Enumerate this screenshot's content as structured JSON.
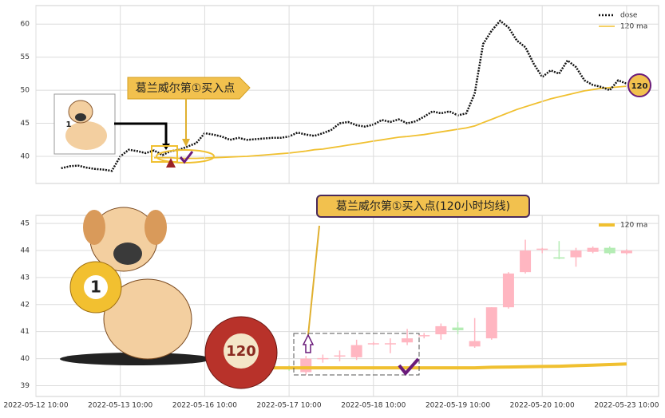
{
  "chart_data": [
    {
      "type": "line",
      "series": [
        {
          "name": "dose",
          "color": "#111111",
          "style": "dotted",
          "values": [
            null,
            null,
            null,
            38.2,
            38.5,
            38.6,
            38.3,
            38.1,
            38.0,
            37.8,
            40.0,
            41.0,
            40.8,
            40.5,
            40.9,
            40.2,
            40.8,
            41.0,
            41.5,
            42.0,
            43.5,
            43.3,
            43.0,
            42.5,
            42.8,
            42.5,
            42.6,
            42.7,
            42.8,
            42.8,
            43.0,
            43.6,
            43.3,
            43.1,
            43.5,
            44.0,
            45.0,
            45.2,
            44.7,
            44.5,
            44.8,
            45.5,
            45.2,
            45.6,
            45.0,
            45.3,
            46.0,
            46.8,
            46.5,
            46.8,
            46.2,
            46.5,
            49.5,
            57.0,
            59.0,
            60.5,
            59.5,
            57.5,
            56.5,
            54.0,
            52.0,
            53.0,
            52.5,
            54.5,
            53.5,
            51.5,
            50.8,
            50.5,
            50.0,
            51.5,
            51.0
          ]
        },
        {
          "name": "120 ma",
          "color": "#f0c030",
          "values": [
            null,
            null,
            null,
            null,
            null,
            null,
            null,
            null,
            null,
            null,
            null,
            null,
            null,
            null,
            39.8,
            39.8,
            39.8,
            39.7,
            39.7,
            39.7,
            39.75,
            39.8,
            39.85,
            39.9,
            39.95,
            40.0,
            40.1,
            40.2,
            40.3,
            40.4,
            40.5,
            40.65,
            40.8,
            41.0,
            41.1,
            41.3,
            41.5,
            41.7,
            41.9,
            42.1,
            42.3,
            42.5,
            42.7,
            42.9,
            43.0,
            43.15,
            43.3,
            43.5,
            43.7,
            43.9,
            44.1,
            44.3,
            44.6,
            45.1,
            45.6,
            46.1,
            46.6,
            47.1,
            47.5,
            47.9,
            48.3,
            48.7,
            49.0,
            49.3,
            49.6,
            49.9,
            50.1,
            50.3,
            50.4,
            50.5,
            50.6
          ]
        }
      ],
      "ylim": [
        35.9,
        62.8
      ],
      "yticks": [
        40,
        45,
        50,
        55,
        60
      ],
      "grid": true,
      "legend": "upper right",
      "annotations": [
        "葛兰威尔第①买入点",
        "120",
        "1"
      ]
    },
    {
      "type": "candlestick",
      "categories": [
        "2022-05-12 10:00",
        null,
        null,
        null,
        null,
        "2022-05-13 10:00",
        null,
        null,
        null,
        null,
        "2022-05-16 10:00",
        null,
        null,
        null,
        null,
        "2022-05-17 10:00",
        null,
        null,
        null,
        null,
        "2022-05-18 10:00",
        null,
        null,
        null,
        null,
        "2022-05-19 10:00",
        null,
        null,
        null,
        null,
        "2022-05-20 10:00",
        null,
        null,
        null,
        null,
        "2022-05-23 10:00",
        null
      ],
      "open": [
        null,
        null,
        null,
        null,
        null,
        null,
        null,
        null,
        null,
        null,
        null,
        null,
        null,
        null,
        null,
        39.7,
        39.5,
        39.98,
        40.08,
        40.05,
        40.53,
        40.53,
        40.6,
        40.83,
        40.9,
        41.15,
        40.45,
        40.75,
        41.9,
        43.2,
        44.03,
        43.75,
        43.75,
        43.95,
        44.1,
        43.9,
        null
      ],
      "high": [
        null,
        null,
        null,
        null,
        null,
        null,
        null,
        null,
        null,
        null,
        null,
        null,
        null,
        null,
        null,
        39.75,
        40.1,
        40.15,
        40.3,
        40.7,
        40.62,
        40.75,
        41.1,
        40.95,
        41.3,
        41.35,
        41.5,
        41.9,
        43.2,
        44.4,
        44.1,
        44.35,
        44.1,
        44.15,
        44.15,
        44.05,
        null
      ],
      "low": [
        null,
        null,
        null,
        null,
        null,
        null,
        null,
        null,
        null,
        null,
        null,
        null,
        null,
        null,
        null,
        39.55,
        39.4,
        39.85,
        39.9,
        39.95,
        40.5,
        40.2,
        40.5,
        40.75,
        40.7,
        40.9,
        40.4,
        40.7,
        41.85,
        43.15,
        43.9,
        43.68,
        43.4,
        43.9,
        43.85,
        43.85,
        null
      ],
      "close": [
        null,
        null,
        null,
        null,
        null,
        null,
        null,
        null,
        null,
        null,
        null,
        null,
        null,
        null,
        null,
        39.6,
        40.0,
        40.02,
        40.12,
        40.5,
        40.57,
        40.57,
        40.75,
        40.87,
        41.2,
        41.05,
        40.65,
        41.9,
        43.15,
        44.0,
        44.07,
        43.7,
        44.0,
        44.1,
        43.9,
        44.0,
        null
      ],
      "up_color": "#ffb6c1",
      "down_color": "#b4ecb4",
      "series": [
        {
          "name": "120 ma",
          "color": "#f0c030",
          "values": [
            null,
            null,
            null,
            null,
            null,
            null,
            null,
            null,
            null,
            null,
            null,
            null,
            null,
            null,
            39.66,
            39.66,
            39.66,
            39.66,
            39.66,
            39.66,
            39.66,
            39.66,
            39.66,
            39.66,
            39.66,
            39.66,
            39.66,
            39.68,
            39.69,
            39.7,
            39.71,
            39.72,
            39.74,
            39.76,
            39.78,
            39.8,
            null
          ]
        }
      ],
      "ylim": [
        38.6,
        45.3
      ],
      "yticks": [
        39,
        40,
        41,
        42,
        43,
        44,
        45
      ],
      "grid": true,
      "legend": "upper right",
      "annotations": [
        "葛兰威尔第①买入点(120小时均线)",
        "120",
        "1"
      ]
    }
  ]
}
